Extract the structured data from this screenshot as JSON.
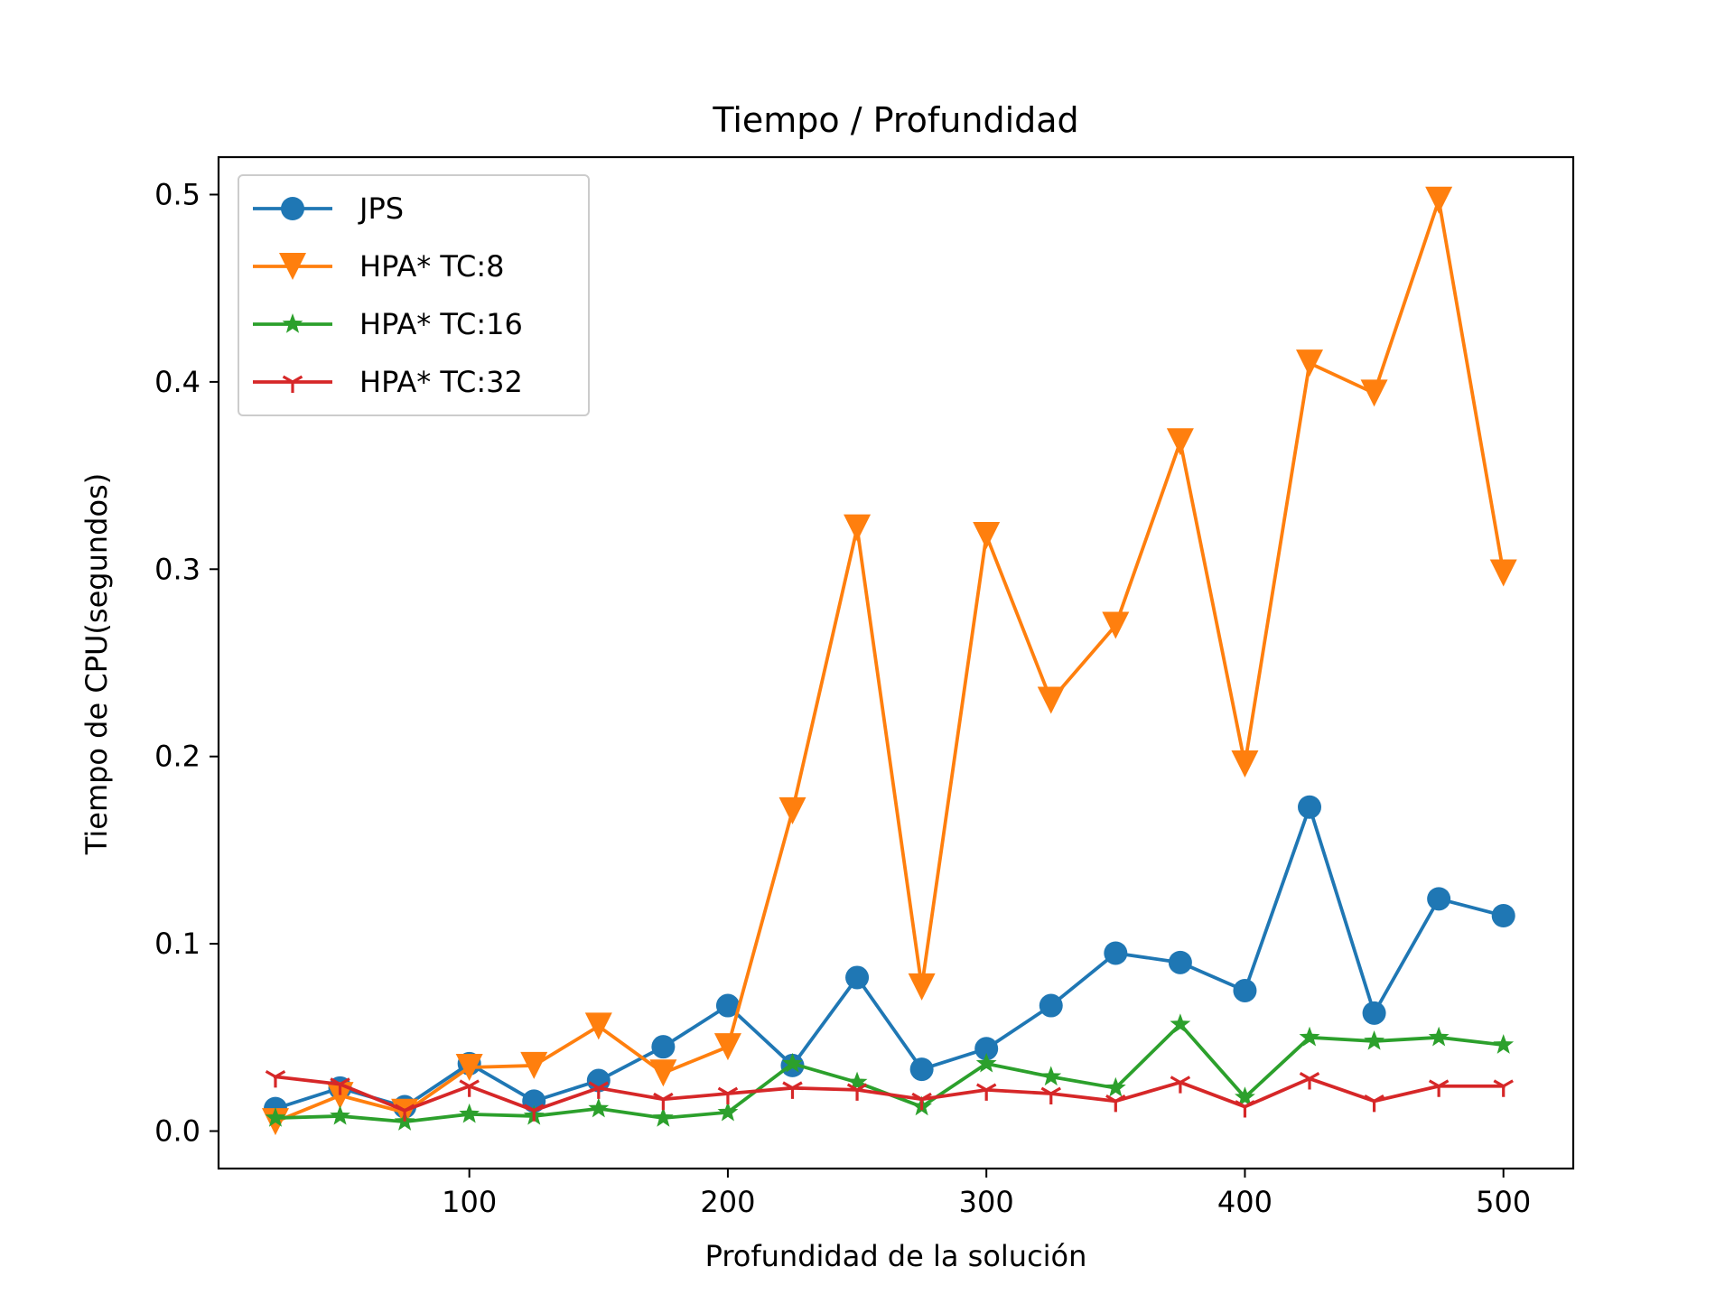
{
  "chart_data": {
    "type": "line",
    "title": "Tiempo / Profundidad",
    "xlabel": "Profundidad de la solución",
    "ylabel": "Tiempo de CPU(segundos)",
    "xlim": [
      3,
      527
    ],
    "ylim": [
      -0.02,
      0.52
    ],
    "xticks": [
      {
        "value": 100,
        "label": "100"
      },
      {
        "value": 200,
        "label": "200"
      },
      {
        "value": 300,
        "label": "300"
      },
      {
        "value": 400,
        "label": "400"
      },
      {
        "value": 500,
        "label": "500"
      }
    ],
    "yticks": [
      {
        "value": 0.0,
        "label": "0.0"
      },
      {
        "value": 0.1,
        "label": "0.1"
      },
      {
        "value": 0.2,
        "label": "0.2"
      },
      {
        "value": 0.3,
        "label": "0.3"
      },
      {
        "value": 0.4,
        "label": "0.4"
      },
      {
        "value": 0.5,
        "label": "0.5"
      }
    ],
    "grid": false,
    "legend_position": "top-left",
    "x": [
      25,
      50,
      75,
      100,
      125,
      150,
      175,
      200,
      225,
      250,
      275,
      300,
      325,
      350,
      375,
      400,
      425,
      450,
      475,
      500
    ],
    "series": [
      {
        "name": "JPS",
        "color": "#1f77b4",
        "marker": "circle",
        "values": [
          0.012,
          0.023,
          0.013,
          0.036,
          0.016,
          0.027,
          0.045,
          0.067,
          0.035,
          0.082,
          0.033,
          0.044,
          0.067,
          0.095,
          0.09,
          0.075,
          0.173,
          0.063,
          0.124,
          0.115
        ]
      },
      {
        "name": "HPA* TC:8",
        "color": "#ff7f0e",
        "marker": "triangle-down",
        "values": [
          0.005,
          0.019,
          0.01,
          0.034,
          0.035,
          0.056,
          0.031,
          0.045,
          0.171,
          0.322,
          0.077,
          0.318,
          0.23,
          0.27,
          0.368,
          0.196,
          0.41,
          0.394,
          0.497,
          0.298
        ]
      },
      {
        "name": "HPA* TC:16",
        "color": "#2ca02c",
        "marker": "star",
        "values": [
          0.007,
          0.008,
          0.005,
          0.009,
          0.008,
          0.012,
          0.007,
          0.01,
          0.036,
          0.026,
          0.013,
          0.036,
          0.029,
          0.023,
          0.057,
          0.018,
          0.05,
          0.048,
          0.05,
          0.046
        ]
      },
      {
        "name": "HPA* TC:32",
        "color": "#d62728",
        "marker": "tri-down",
        "values": [
          0.029,
          0.025,
          0.011,
          0.024,
          0.011,
          0.023,
          0.017,
          0.02,
          0.023,
          0.022,
          0.017,
          0.022,
          0.02,
          0.016,
          0.026,
          0.013,
          0.028,
          0.016,
          0.024,
          0.024
        ]
      }
    ]
  }
}
